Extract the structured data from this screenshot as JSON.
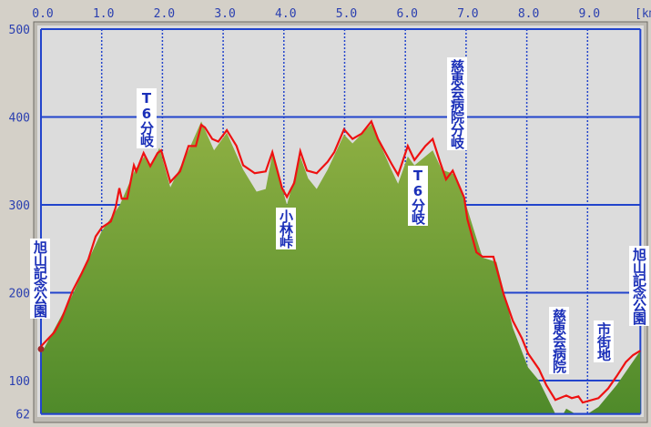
{
  "chart_data": {
    "type": "area",
    "title": "",
    "xlabel": "[km]",
    "ylabel": "",
    "xlim": [
      0,
      9.87
    ],
    "ylim": [
      62,
      500
    ],
    "x_ticks": [
      "0.0",
      "1.0",
      "2.0",
      "3.0",
      "4.0",
      "5.0",
      "6.0",
      "7.0",
      "8.0",
      "9.0"
    ],
    "y_ticks": [
      "500",
      "400",
      "300",
      "200",
      "100",
      "62"
    ],
    "grid": true,
    "colors": {
      "track": "#ee1111",
      "terrain": "#6f9a2e",
      "grid": "#2244cc",
      "plot_bg": "#dcdcdc"
    },
    "series": [
      {
        "key": "track",
        "points": [
          [
            0,
            139
          ],
          [
            0.07,
            144
          ],
          [
            0.22,
            155
          ],
          [
            0.34,
            170
          ],
          [
            0.52,
            202
          ],
          [
            0.67,
            222
          ],
          [
            0.78,
            238
          ],
          [
            0.9,
            264
          ],
          [
            1.0,
            274
          ],
          [
            1.15,
            281
          ],
          [
            1.23,
            297
          ],
          [
            1.29,
            319
          ],
          [
            1.33,
            307
          ],
          [
            1.42,
            307
          ],
          [
            1.53,
            345
          ],
          [
            1.57,
            338
          ],
          [
            1.69,
            359
          ],
          [
            1.8,
            344
          ],
          [
            1.92,
            359
          ],
          [
            1.98,
            362
          ],
          [
            2.13,
            326
          ],
          [
            2.29,
            338
          ],
          [
            2.43,
            367
          ],
          [
            2.55,
            367
          ],
          [
            2.64,
            391
          ],
          [
            2.7,
            388
          ],
          [
            2.82,
            375
          ],
          [
            2.92,
            372
          ],
          [
            3.06,
            385
          ],
          [
            3.22,
            367
          ],
          [
            3.33,
            345
          ],
          [
            3.52,
            336
          ],
          [
            3.7,
            338
          ],
          [
            3.81,
            360
          ],
          [
            3.97,
            319
          ],
          [
            4.05,
            309
          ],
          [
            4.17,
            325
          ],
          [
            4.27,
            361
          ],
          [
            4.38,
            339
          ],
          [
            4.54,
            336
          ],
          [
            4.72,
            349
          ],
          [
            4.83,
            360
          ],
          [
            4.99,
            386
          ],
          [
            5.13,
            375
          ],
          [
            5.28,
            381
          ],
          [
            5.44,
            395
          ],
          [
            5.55,
            375
          ],
          [
            5.77,
            347
          ],
          [
            5.88,
            334
          ],
          [
            6.04,
            367
          ],
          [
            6.15,
            351
          ],
          [
            6.33,
            367
          ],
          [
            6.45,
            375
          ],
          [
            6.57,
            349
          ],
          [
            6.67,
            329
          ],
          [
            6.78,
            339
          ],
          [
            6.97,
            308
          ],
          [
            7.02,
            284
          ],
          [
            7.17,
            246
          ],
          [
            7.27,
            241
          ],
          [
            7.45,
            241
          ],
          [
            7.62,
            198
          ],
          [
            7.77,
            168
          ],
          [
            7.92,
            148
          ],
          [
            8.02,
            131
          ],
          [
            8.2,
            113
          ],
          [
            8.32,
            95
          ],
          [
            8.47,
            78
          ],
          [
            8.65,
            83
          ],
          [
            8.74,
            80
          ],
          [
            8.85,
            82
          ],
          [
            8.92,
            75
          ],
          [
            9.18,
            80
          ],
          [
            9.34,
            91
          ],
          [
            9.48,
            105
          ],
          [
            9.63,
            121
          ],
          [
            9.75,
            129
          ],
          [
            9.87,
            134
          ]
        ]
      },
      {
        "key": "terrain",
        "points": [
          [
            0,
            130
          ],
          [
            0.5,
            195
          ],
          [
            1.0,
            270
          ],
          [
            1.3,
            300
          ],
          [
            1.55,
            340
          ],
          [
            1.7,
            355
          ],
          [
            1.8,
            342
          ],
          [
            1.95,
            365
          ],
          [
            2.13,
            320
          ],
          [
            2.43,
            362
          ],
          [
            2.64,
            395
          ],
          [
            2.85,
            362
          ],
          [
            3.06,
            382
          ],
          [
            3.33,
            340
          ],
          [
            3.55,
            315
          ],
          [
            3.7,
            318
          ],
          [
            3.81,
            358
          ],
          [
            4.05,
            300
          ],
          [
            4.27,
            355
          ],
          [
            4.4,
            330
          ],
          [
            4.54,
            318
          ],
          [
            4.72,
            340
          ],
          [
            4.99,
            380
          ],
          [
            5.13,
            370
          ],
          [
            5.44,
            392
          ],
          [
            5.77,
            340
          ],
          [
            5.88,
            324
          ],
          [
            6.04,
            355
          ],
          [
            6.15,
            345
          ],
          [
            6.45,
            362
          ],
          [
            6.6,
            340
          ],
          [
            6.8,
            335
          ],
          [
            7.0,
            300
          ],
          [
            7.27,
            240
          ],
          [
            7.5,
            235
          ],
          [
            7.77,
            160
          ],
          [
            8.02,
            115
          ],
          [
            8.2,
            100
          ],
          [
            8.47,
            62
          ],
          [
            8.6,
            62
          ],
          [
            8.65,
            68
          ],
          [
            8.8,
            62
          ],
          [
            9.0,
            62
          ],
          [
            9.18,
            70
          ],
          [
            9.48,
            95
          ],
          [
            9.87,
            134
          ]
        ]
      }
    ],
    "annotations": [
      {
        "text": "旭山記念公園",
        "km": 0.0
      },
      {
        "text": "T6分岐",
        "km": 1.7
      },
      {
        "text": "小林峠",
        "km": 4.0
      },
      {
        "text": "慈恵会病院分岐",
        "km": 7.0
      },
      {
        "text": "T6分岐",
        "km": 6.2
      },
      {
        "text": "慈恵会病院",
        "km": 8.7
      },
      {
        "text": "市街地",
        "km": 9.2
      },
      {
        "text": "旭山記念公園",
        "km": 9.87
      }
    ]
  }
}
